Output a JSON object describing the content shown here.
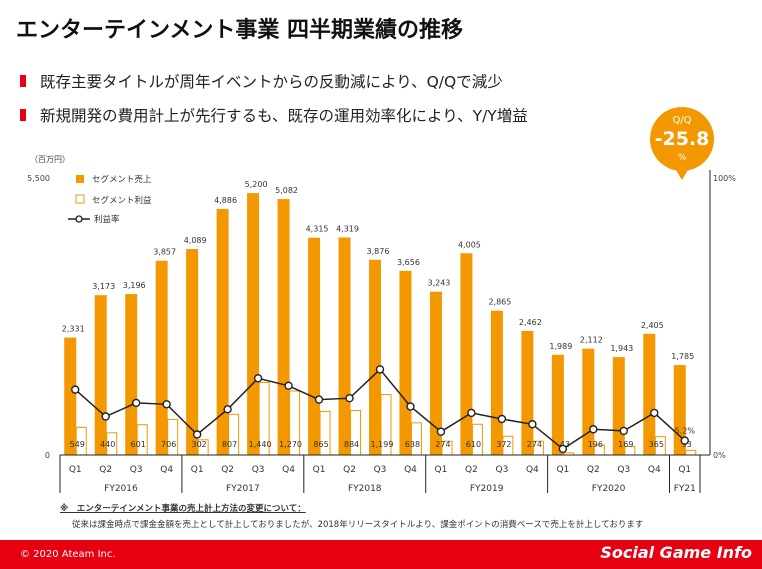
{
  "title": "エンターテインメント事業 四半期業績の推移",
  "bullets": [
    "既存主要タイトルが周年イベントからの反動減により、Q/Qで減少",
    "新規開発の費用計上が先行するも、既存の運用効率化により、Y/Y増益"
  ],
  "badge": {
    "label": "Q/Q",
    "value": "-25.8",
    "unit": "%"
  },
  "chart_data": {
    "type": "bar",
    "unit_label": "（百万円）",
    "y_left_ticks": [
      "5,500",
      "0"
    ],
    "y_right_ticks": [
      "100%",
      "0%"
    ],
    "ylim": [
      0,
      5500
    ],
    "y2lim": [
      0,
      100
    ],
    "legend": [
      "セグメント売上",
      "セグメント利益",
      "利益率"
    ],
    "categories": [
      "Q1",
      "Q2",
      "Q3",
      "Q4",
      "Q1",
      "Q2",
      "Q3",
      "Q4",
      "Q1",
      "Q2",
      "Q3",
      "Q4",
      "Q1",
      "Q2",
      "Q3",
      "Q4",
      "Q1",
      "Q2",
      "Q3",
      "Q4",
      "Q1"
    ],
    "fiscal_years": [
      {
        "label": "FY2016",
        "count": 4
      },
      {
        "label": "FY2017",
        "count": 4
      },
      {
        "label": "FY2018",
        "count": 4
      },
      {
        "label": "FY2019",
        "count": 4
      },
      {
        "label": "FY2020",
        "count": 4
      },
      {
        "label": "FY21",
        "count": 1
      }
    ],
    "series": [
      {
        "name": "セグメント売上",
        "values": [
          2331,
          3173,
          3196,
          3857,
          4089,
          4886,
          5200,
          5082,
          4315,
          4319,
          3876,
          3656,
          3243,
          4005,
          2865,
          2462,
          1989,
          2112,
          1943,
          2405,
          1785
        ],
        "labels": [
          "2,331",
          "3,173",
          "3,196",
          "3,857",
          "4,089",
          "4,886",
          "5,200",
          "5,082",
          "4,315",
          "4,319",
          "3,876",
          "3,656",
          "3,243",
          "4,005",
          "2,865",
          "2,462",
          "1,989",
          "2,112",
          "1,943",
          "2,405",
          "1,785"
        ]
      },
      {
        "name": "セグメント利益",
        "values": [
          549,
          440,
          601,
          706,
          302,
          807,
          1440,
          1270,
          865,
          884,
          1199,
          638,
          274,
          610,
          372,
          274,
          43,
          196,
          169,
          365,
          93
        ],
        "labels": [
          "549",
          "440",
          "601",
          "706",
          "302",
          "807",
          "1,440",
          "1,270",
          "865",
          "884",
          "1,199",
          "638",
          "274",
          "610",
          "372",
          "274",
          "43",
          "196",
          "169",
          "365",
          "93"
        ]
      },
      {
        "name": "利益率",
        "values": [
          23.6,
          13.9,
          18.8,
          18.3,
          7.4,
          16.5,
          27.7,
          25.0,
          20.0,
          20.5,
          30.9,
          17.5,
          8.4,
          15.2,
          13.0,
          11.1,
          2.2,
          9.3,
          8.7,
          15.2,
          5.2
        ],
        "labels": [
          "",
          "",
          "",
          "",
          "",
          "",
          "",
          "",
          "",
          "",
          "",
          "",
          "",
          "",
          "",
          "",
          "",
          "",
          "",
          "",
          "5.2%"
        ]
      }
    ]
  },
  "note": {
    "heading": "※　エンターテインメント事業の売上計上方法の変更について：",
    "body": "従来は課金時点で課金金額を売上として計上しておりましたが、2018年リリースタイトルより、課金ポイントの消費ベースで売上を計上しております"
  },
  "footer": {
    "copyright": "© 2020 Ateam Inc.",
    "brand": "Social Game Info"
  },
  "colors": {
    "accent": "#e60012",
    "bar_sales": "#f39800",
    "bar_profit_border": "#f39800",
    "line": "#222222"
  }
}
